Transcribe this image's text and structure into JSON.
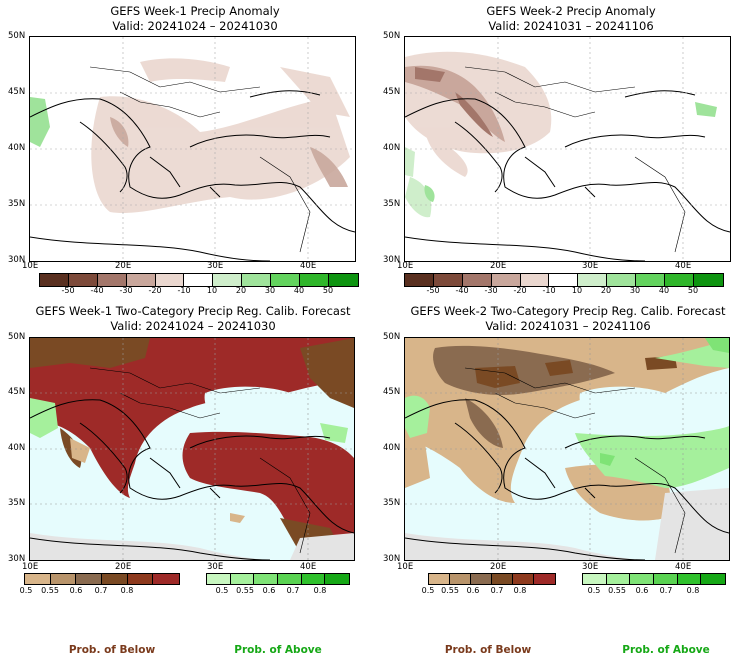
{
  "panels": [
    {
      "title": "GEFS Week-1 Precip Anomaly",
      "valid": "Valid: 20241024 – 20241030"
    },
    {
      "title": "GEFS Week-2 Precip Anomaly",
      "valid": "Valid: 20241031 – 20241106"
    },
    {
      "title": "GEFS Week-1 Two-Category Precip Reg. Calib. Forecast",
      "valid": "Valid: 20241024 – 20241030"
    },
    {
      "title": "GEFS Week-2 Two-Category Precip Reg. Calib. Forecast",
      "valid": "Valid: 20241031 – 20241106"
    }
  ],
  "axes": {
    "lat_ticks": [
      "50N",
      "45N",
      "40N",
      "35N",
      "30N"
    ],
    "lon_ticks": [
      "10E",
      "20E",
      "30E",
      "40E"
    ]
  },
  "anomaly_colorbar": {
    "labels": [
      "-50",
      "-40",
      "-30",
      "-20",
      "-10",
      "10",
      "20",
      "30",
      "40",
      "50"
    ],
    "colors": [
      "#5a3020",
      "#7d4a3a",
      "#a3766a",
      "#c9a79c",
      "#ead7cf",
      "#ffffff",
      "#cfeecb",
      "#9fe39b",
      "#63d35e",
      "#2fb62a",
      "#0d9410"
    ]
  },
  "prob_colorbar_below": {
    "labels": [
      "0.5",
      "0.55",
      "0.6",
      "0.7",
      "0.8"
    ],
    "colors": [
      "#d8b58a",
      "#b8946b",
      "#8a6b50",
      "#7a4a24",
      "#8e3a1e",
      "#9e2a28"
    ]
  },
  "prob_colorbar_above": {
    "labels": [
      "0.5",
      "0.55",
      "0.6",
      "0.7",
      "0.8"
    ],
    "colors": [
      "#c8f7c0",
      "#a5f09c",
      "#7fe376",
      "#5ad352",
      "#2fc12c",
      "#16a816"
    ]
  },
  "legend": {
    "below_label": "Prob. of Below",
    "above_label": "Prob. of Above",
    "below_color": "#7a3a1c",
    "above_color": "#16a816"
  },
  "colors": {
    "sea_fill": "#e6fcfd",
    "no_data": "#e4e4e4"
  }
}
